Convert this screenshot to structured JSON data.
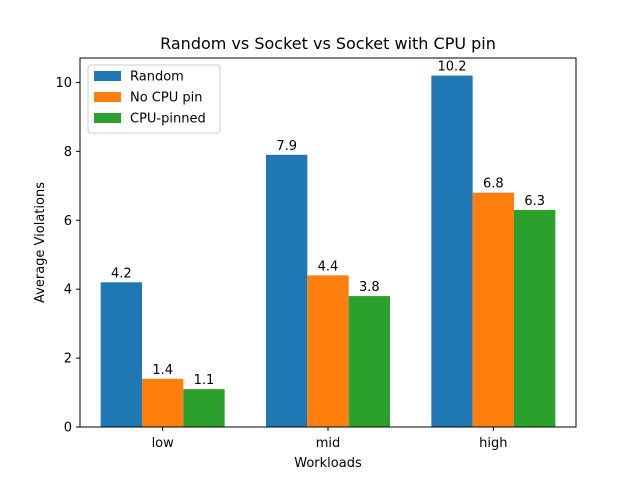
{
  "chart_data": {
    "type": "bar",
    "title": "Random vs Socket vs Socket with CPU pin",
    "xlabel": "Workloads",
    "ylabel": "Average Violations",
    "categories": [
      "low",
      "mid",
      "high"
    ],
    "series": [
      {
        "name": "Random",
        "values": [
          4.2,
          7.9,
          10.2
        ],
        "color": "#1f77b4"
      },
      {
        "name": "No CPU pin",
        "values": [
          1.4,
          4.4,
          6.8
        ],
        "color": "#ff7f0e"
      },
      {
        "name": "CPU-pinned",
        "values": [
          1.1,
          3.8,
          6.3
        ],
        "color": "#2ca02c"
      }
    ],
    "ylim": [
      0,
      10.71
    ],
    "yticks": [
      0,
      2,
      4,
      6,
      8,
      10
    ],
    "grid": false,
    "legend_position": "upper-left",
    "data_labels": true
  }
}
